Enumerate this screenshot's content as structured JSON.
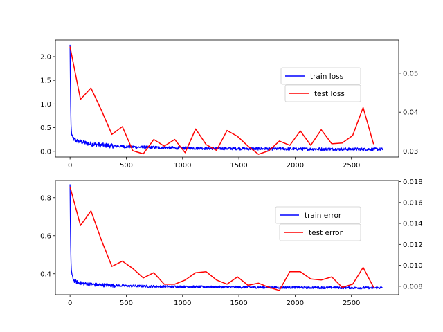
{
  "chart_data": [
    {
      "type": "line",
      "title": "",
      "xlabel": "",
      "ylabel": "",
      "xlim": [
        -130,
        2920
      ],
      "xticks": [
        0,
        500,
        1000,
        1500,
        2000,
        2500
      ],
      "ylim_left": [
        -0.12,
        2.35
      ],
      "yticks_left": [
        0.0,
        0.5,
        1.0,
        1.5,
        2.0
      ],
      "ylim_right": [
        0.0285,
        0.0585
      ],
      "yticks_right": [
        0.03,
        0.04,
        0.05
      ],
      "grid": false,
      "legend": [
        "train loss",
        "test loss"
      ],
      "colors": {
        "train": "#0000ff",
        "test": "#ff0000"
      },
      "series": [
        {
          "name": "train loss",
          "axis": "left",
          "x": [
            0,
            4,
            8,
            12,
            16,
            20,
            30,
            40,
            60,
            80,
            100,
            150,
            200,
            300,
            400,
            500,
            600,
            700,
            800,
            900,
            1000,
            1200,
            1400,
            1600,
            1800,
            2000,
            2200,
            2400,
            2600,
            2780
          ],
          "y": [
            2.25,
            1.3,
            0.6,
            0.42,
            0.35,
            0.3,
            0.26,
            0.24,
            0.22,
            0.21,
            0.2,
            0.17,
            0.15,
            0.13,
            0.11,
            0.1,
            0.09,
            0.085,
            0.08,
            0.075,
            0.07,
            0.065,
            0.06,
            0.055,
            0.052,
            0.05,
            0.048,
            0.046,
            0.045,
            0.044
          ],
          "noise": 0.03
        },
        {
          "name": "test loss",
          "axis": "right",
          "x": [
            0,
            93,
            186,
            279,
            372,
            465,
            558,
            651,
            744,
            837,
            930,
            1023,
            1116,
            1209,
            1302,
            1395,
            1488,
            1581,
            1674,
            1767,
            1860,
            1953,
            2046,
            2139,
            2232,
            2325,
            2418,
            2511,
            2604,
            2697
          ],
          "y": [
            0.0568,
            0.0433,
            0.0462,
            0.0405,
            0.0343,
            0.0363,
            0.0301,
            0.0293,
            0.033,
            0.0313,
            0.033,
            0.0296,
            0.0357,
            0.0317,
            0.0302,
            0.0353,
            0.0338,
            0.0313,
            0.0292,
            0.0301,
            0.0326,
            0.0315,
            0.0352,
            0.0315,
            0.0355,
            0.0319,
            0.0321,
            0.034,
            0.0412,
            0.0318
          ]
        }
      ]
    },
    {
      "type": "line",
      "title": "",
      "xlabel": "",
      "ylabel": "",
      "xlim": [
        -130,
        2920
      ],
      "xticks": [
        0,
        500,
        1000,
        1500,
        2000,
        2500
      ],
      "ylim_left": [
        0.29,
        0.89
      ],
      "yticks_left": [
        0.4,
        0.6,
        0.8
      ],
      "ylim_right": [
        0.0072,
        0.0181
      ],
      "yticks_right": [
        0.008,
        0.01,
        0.012,
        0.014,
        0.016,
        0.018
      ],
      "grid": false,
      "legend": [
        "train error",
        "test error"
      ],
      "colors": {
        "train": "#0000ff",
        "test": "#ff0000"
      },
      "series": [
        {
          "name": "train error",
          "axis": "left",
          "x": [
            0,
            4,
            8,
            12,
            16,
            20,
            30,
            40,
            60,
            80,
            100,
            150,
            200,
            300,
            400,
            500,
            600,
            800,
            1000,
            1200,
            1400,
            1600,
            1800,
            2000,
            2200,
            2400,
            2600,
            2780
          ],
          "y": [
            0.87,
            0.62,
            0.47,
            0.42,
            0.4,
            0.385,
            0.37,
            0.362,
            0.356,
            0.352,
            0.35,
            0.346,
            0.343,
            0.34,
            0.338,
            0.336,
            0.335,
            0.333,
            0.332,
            0.331,
            0.33,
            0.329,
            0.328,
            0.328,
            0.327,
            0.327,
            0.326,
            0.326
          ],
          "noise": 0.006
        },
        {
          "name": "test error",
          "axis": "right",
          "x": [
            0,
            93,
            186,
            279,
            372,
            465,
            558,
            651,
            744,
            837,
            930,
            1023,
            1116,
            1209,
            1302,
            1395,
            1488,
            1581,
            1674,
            1767,
            1860,
            1953,
            2046,
            2139,
            2232,
            2325,
            2418,
            2511,
            2604,
            2697
          ],
          "y": [
            0.0175,
            0.0138,
            0.0152,
            0.0124,
            0.0099,
            0.0104,
            0.0097,
            0.0088,
            0.0093,
            0.0082,
            0.0082,
            0.0086,
            0.0093,
            0.0094,
            0.0086,
            0.0082,
            0.0089,
            0.0081,
            0.0083,
            0.0079,
            0.0076,
            0.0094,
            0.0094,
            0.0087,
            0.0086,
            0.0089,
            0.0079,
            0.0082,
            0.0098,
            0.0079
          ]
        }
      ]
    }
  ]
}
